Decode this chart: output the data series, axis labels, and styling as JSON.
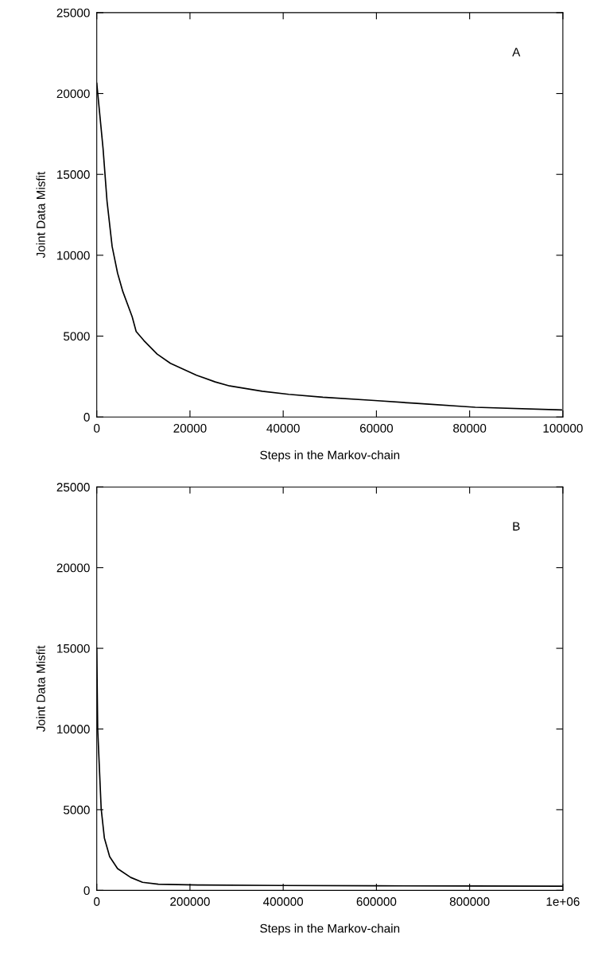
{
  "chart_data": [
    {
      "type": "line",
      "xlabel": "Steps in the Markov-chain",
      "ylabel": "Joint Data Misfit",
      "annotations": [
        "A"
      ],
      "x": [
        0,
        1350,
        2200,
        3300,
        4460,
        5600,
        7600,
        8450,
        10100,
        12950,
        15800,
        21400,
        25400,
        28500,
        35500,
        41200,
        48500,
        59600,
        68100,
        81200,
        99700
      ],
      "series": [
        {
          "color": "#000000",
          "values": [
            20640,
            16600,
            13350,
            10540,
            8900,
            7750,
            6200,
            5290,
            4730,
            3890,
            3320,
            2580,
            2170,
            1920,
            1590,
            1400,
            1220,
            1020,
            850,
            600,
            440
          ]
        }
      ],
      "xlim": [
        0,
        100000
      ],
      "xticks": [
        0,
        20000,
        40000,
        60000,
        80000,
        100000
      ],
      "ylim": [
        0,
        25000
      ],
      "yticks": [
        0,
        5000,
        10000,
        15000,
        20000,
        25000
      ],
      "grid": false,
      "legend": false
    },
    {
      "type": "line",
      "xlabel": "Steps in the Markov-chain",
      "ylabel": "Joint Data Misfit",
      "annotations": [
        "B"
      ],
      "x": [
        0,
        2000,
        9500,
        16300,
        27700,
        44600,
        72900,
        98300,
        132000,
        217000,
        400000,
        600000,
        800000,
        1000000
      ],
      "series": [
        {
          "color": "#000000",
          "values": [
            15000,
            10000,
            5050,
            3250,
            2090,
            1350,
            800,
            500,
            380,
            330,
            300,
            280,
            270,
            260
          ]
        }
      ],
      "xlim": [
        0,
        1000000
      ],
      "xticks": [
        0,
        200000,
        400000,
        600000,
        800000,
        {
          "value": 1000000,
          "label": "1e+06"
        }
      ],
      "ylim": [
        0,
        25000
      ],
      "yticks": [
        0,
        5000,
        10000,
        15000,
        20000,
        25000
      ],
      "grid": false,
      "legend": false
    }
  ]
}
